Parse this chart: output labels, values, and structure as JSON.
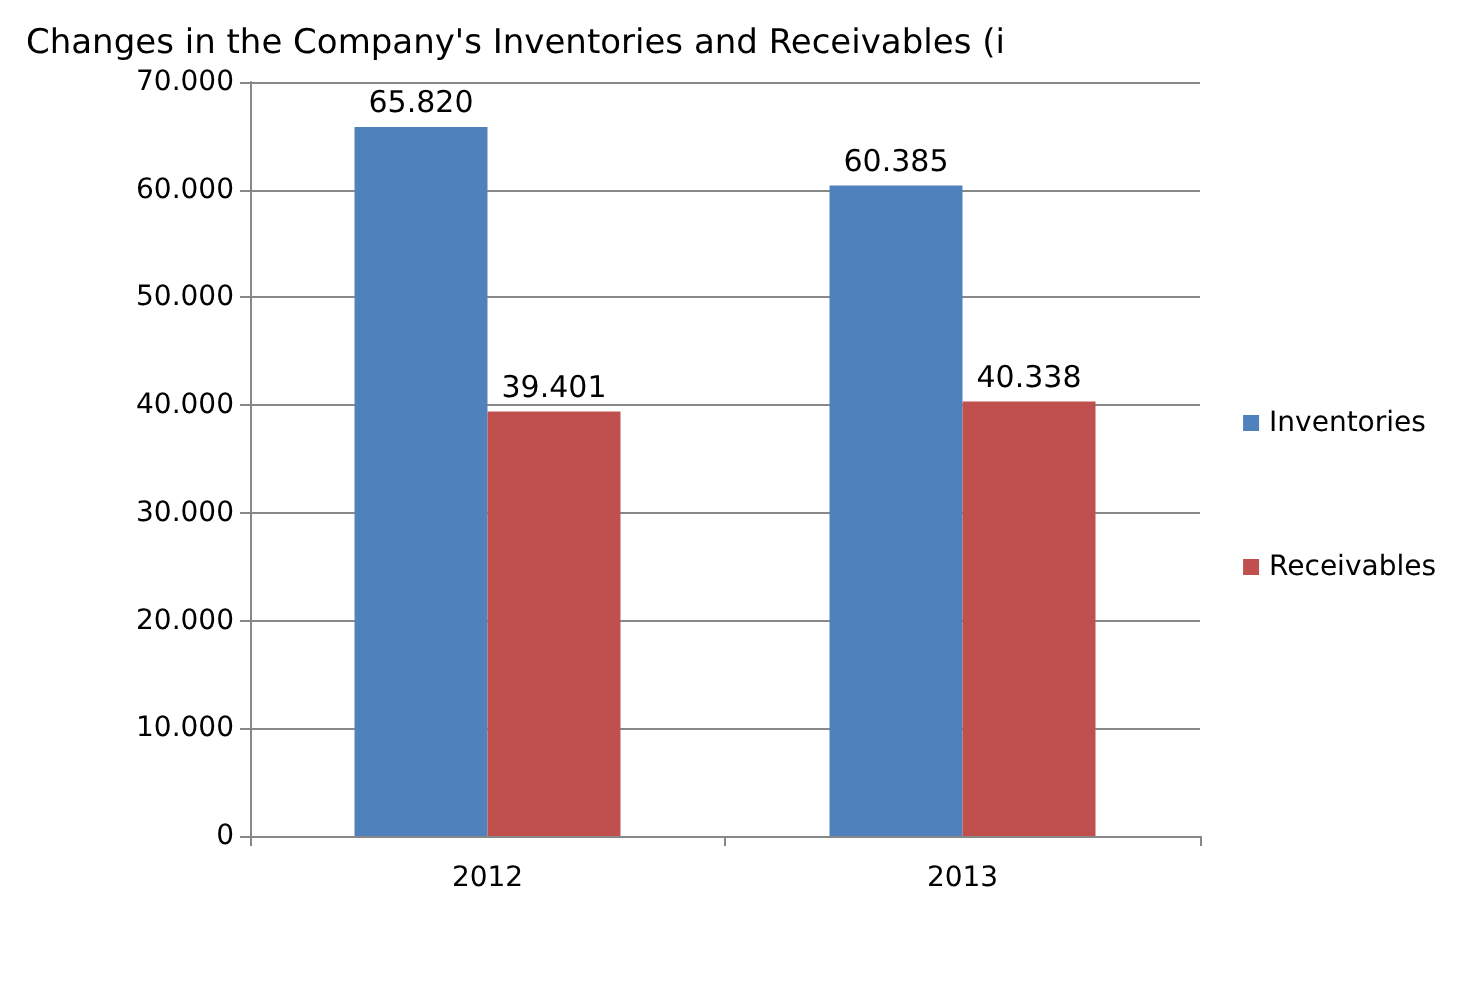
{
  "chart_data": {
    "type": "bar",
    "title": "Changes in the Company's Inventories and Receivables (i",
    "categories": [
      "2012",
      "2013"
    ],
    "series": [
      {
        "name": "Inventories",
        "color": "#4f81bd",
        "values": [
          65820,
          60385
        ],
        "value_labels": [
          "65.820",
          "60.385"
        ]
      },
      {
        "name": "Receivables",
        "color": "#c0504d",
        "values": [
          39401,
          40338
        ],
        "value_labels": [
          "39.401",
          "40.338"
        ]
      }
    ],
    "ylim": [
      0,
      70000
    ],
    "yticks": [
      {
        "value": 0,
        "label": "0"
      },
      {
        "value": 10000,
        "label": "10.000"
      },
      {
        "value": 20000,
        "label": "20.000"
      },
      {
        "value": 30000,
        "label": "30.000"
      },
      {
        "value": 40000,
        "label": "40.000"
      },
      {
        "value": 50000,
        "label": "50.000"
      },
      {
        "value": 60000,
        "label": "60.000"
      },
      {
        "value": 70000,
        "label": "70.000"
      }
    ],
    "grid": "y",
    "legend": "right"
  }
}
